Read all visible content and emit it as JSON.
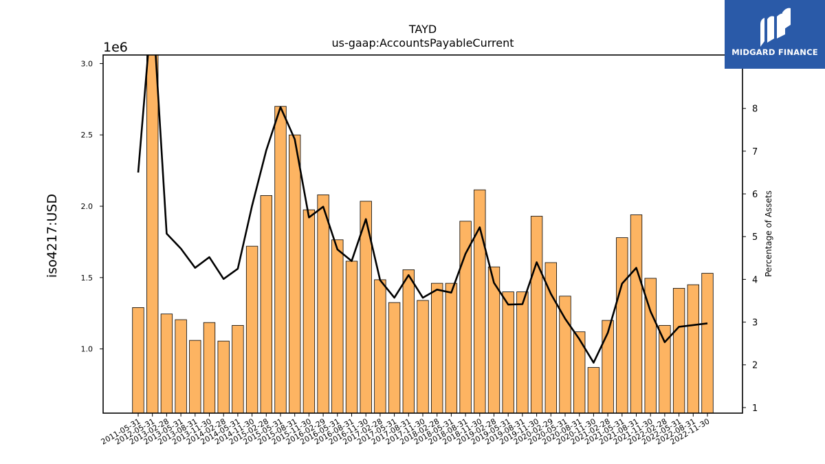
{
  "chart_data": {
    "type": "bar",
    "title": "TAYD",
    "subtitle": "us-gaap:AccountsPayableCurrent",
    "ylabel": "iso4217:USD",
    "y2label": "Percentage of Assets",
    "y_multiplier": "1e6",
    "ylim": [
      550000,
      3060000
    ],
    "y2lim": [
      0.87,
      9.25
    ],
    "yticks": [
      1.0,
      1.5,
      2.0,
      2.5,
      3.0
    ],
    "y2ticks": [
      1,
      2,
      3,
      4,
      5,
      6,
      7,
      8
    ],
    "grid": false,
    "bar_color": "#fdb462",
    "line_color": "#000000",
    "categories": [
      "2011-05-31",
      "2012-05-31",
      "2013-02-28",
      "2013-05-31",
      "2013-08-31",
      "2013-11-30",
      "2014-02-28",
      "2014-05-31",
      "2014-11-30",
      "2015-02-28",
      "2015-05-31",
      "2015-08-31",
      "2015-11-30",
      "2016-02-29",
      "2016-05-31",
      "2016-08-31",
      "2016-11-30",
      "2017-02-28",
      "2017-05-31",
      "2017-08-31",
      "2017-11-30",
      "2018-02-28",
      "2018-05-31",
      "2018-08-31",
      "2018-11-30",
      "2019-02-28",
      "2019-05-31",
      "2019-08-31",
      "2019-11-30",
      "2020-02-29",
      "2020-05-31",
      "2020-08-31",
      "2020-11-30",
      "2021-02-28",
      "2021-05-31",
      "2021-08-31",
      "2021-11-30",
      "2022-02-28",
      "2022-05-31",
      "2022-08-31",
      "2022-11-30"
    ],
    "series": [
      {
        "name": "iso4217:USD",
        "type": "bar",
        "axis": "left",
        "values": [
          1290000,
          3090000,
          1245000,
          1205000,
          1060000,
          1185000,
          1055000,
          1165000,
          1720000,
          2075000,
          2700000,
          2500000,
          1975000,
          2080000,
          1765000,
          1615000,
          2035000,
          1485000,
          1325000,
          1555000,
          1340000,
          1460000,
          1460000,
          1895000,
          2115000,
          1575000,
          1400000,
          1400000,
          1930000,
          1605000,
          1370000,
          1120000,
          870000,
          1200000,
          1780000,
          1940000,
          1495000,
          1165000,
          1425000,
          1450000,
          1530000
        ]
      },
      {
        "name": "Percentage of Assets",
        "type": "line",
        "axis": "right",
        "values": [
          6.5,
          10.5,
          5.07,
          4.72,
          4.27,
          4.52,
          4.01,
          4.25,
          5.72,
          7.02,
          8.03,
          7.28,
          5.45,
          5.7,
          4.7,
          4.43,
          5.41,
          3.98,
          3.57,
          4.1,
          3.57,
          3.76,
          3.69,
          4.6,
          5.22,
          3.92,
          3.41,
          3.42,
          4.4,
          3.66,
          3.08,
          2.6,
          2.05,
          2.75,
          3.9,
          4.27,
          3.25,
          2.53,
          2.89,
          2.93,
          2.97
        ]
      }
    ]
  },
  "logo": {
    "text": "MIDGARD FINANCE"
  }
}
